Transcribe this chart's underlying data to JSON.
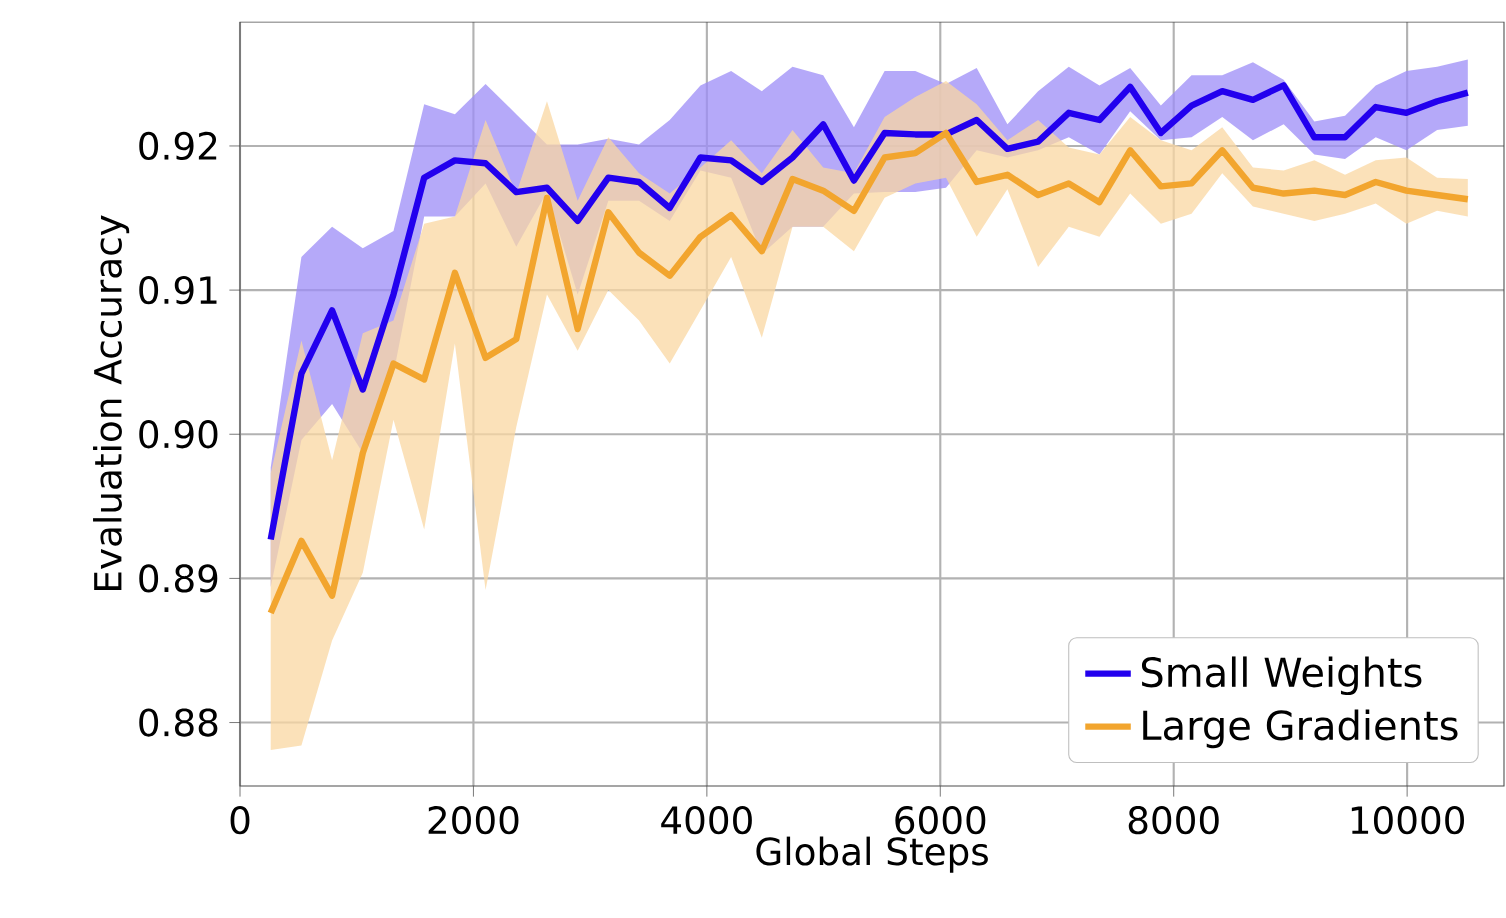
{
  "chart_data": {
    "type": "line",
    "xlabel": "Global Steps",
    "ylabel": "Evaluation Accuracy",
    "x": [
      263,
      526,
      789,
      1052,
      1315,
      1578,
      1841,
      2104,
      2367,
      2630,
      2893,
      3156,
      3419,
      3682,
      3945,
      4208,
      4471,
      4734,
      4997,
      5260,
      5523,
      5786,
      6049,
      6312,
      6575,
      6838,
      7101,
      7364,
      7627,
      7890,
      8153,
      8416,
      8679,
      8942,
      9205,
      9468,
      9731,
      9994,
      10257,
      10520
    ],
    "series": [
      {
        "name": "Small Weights",
        "color": "#2200ee",
        "values": [
          0.8927,
          0.9042,
          0.9086,
          0.9031,
          0.9097,
          0.9178,
          0.919,
          0.9188,
          0.9168,
          0.9171,
          0.9148,
          0.9178,
          0.9175,
          0.9157,
          0.9192,
          0.919,
          0.9175,
          0.9192,
          0.9215,
          0.9176,
          0.9209,
          0.9208,
          0.9208,
          0.9218,
          0.9198,
          0.9203,
          0.9223,
          0.9218,
          0.9241,
          0.9209,
          0.9228,
          0.9238,
          0.9232,
          0.9242,
          0.9206,
          0.9206,
          0.9227,
          0.9223,
          0.9231,
          0.9237
        ],
        "upper": [
          0.8977,
          0.9123,
          0.9144,
          0.9129,
          0.9141,
          0.9229,
          0.9222,
          0.9243,
          0.9222,
          0.9201,
          0.9201,
          0.9205,
          0.9201,
          0.9218,
          0.9242,
          0.9252,
          0.9238,
          0.9255,
          0.9249,
          0.9213,
          0.9252,
          0.9252,
          0.9243,
          0.9254,
          0.9215,
          0.9238,
          0.9255,
          0.9242,
          0.9254,
          0.9228,
          0.9249,
          0.9249,
          0.9258,
          0.9246,
          0.9217,
          0.9221,
          0.9242,
          0.9252,
          0.9255,
          0.926
        ],
        "lower": [
          0.8894,
          0.8996,
          0.9021,
          0.8987,
          0.9042,
          0.9151,
          0.9151,
          0.9174,
          0.913,
          0.9168,
          0.9097,
          0.9162,
          0.9162,
          0.9148,
          0.9183,
          0.9178,
          0.9125,
          0.9144,
          0.9144,
          0.9167,
          0.9168,
          0.9168,
          0.9171,
          0.9197,
          0.9192,
          0.9197,
          0.9206,
          0.9194,
          0.9224,
          0.9204,
          0.9206,
          0.922,
          0.9204,
          0.9215,
          0.9194,
          0.9191,
          0.9206,
          0.9197,
          0.9211,
          0.9214
        ]
      },
      {
        "name": "Large Gradients",
        "color": "#f2a52e",
        "values": [
          0.8876,
          0.8926,
          0.8888,
          0.8987,
          0.9049,
          0.9038,
          0.9112,
          0.9053,
          0.9066,
          0.9164,
          0.9073,
          0.9154,
          0.9126,
          0.911,
          0.9137,
          0.9152,
          0.9127,
          0.9177,
          0.9169,
          0.9155,
          0.9192,
          0.9195,
          0.9209,
          0.9175,
          0.918,
          0.9166,
          0.9174,
          0.9161,
          0.9197,
          0.9172,
          0.9174,
          0.9197,
          0.9171,
          0.9167,
          0.9169,
          0.9166,
          0.9175,
          0.9169,
          0.9166,
          0.9163
        ],
        "upper": [
          0.8973,
          0.9065,
          0.8982,
          0.907,
          0.9079,
          0.9146,
          0.9151,
          0.9218,
          0.9167,
          0.9231,
          0.9162,
          0.9206,
          0.9181,
          0.9167,
          0.9185,
          0.9204,
          0.9181,
          0.9211,
          0.9185,
          0.9181,
          0.922,
          0.9234,
          0.9245,
          0.9229,
          0.9204,
          0.9218,
          0.9199,
          0.9194,
          0.922,
          0.9204,
          0.9197,
          0.9213,
          0.9185,
          0.9183,
          0.919,
          0.918,
          0.919,
          0.9192,
          0.9178,
          0.9177
        ],
        "lower": [
          0.8781,
          0.8784,
          0.8857,
          0.8904,
          0.901,
          0.8934,
          0.9063,
          0.8892,
          0.9005,
          0.9097,
          0.9058,
          0.91,
          0.9079,
          0.9049,
          0.9086,
          0.9123,
          0.9067,
          0.9144,
          0.9144,
          0.9127,
          0.9164,
          0.9174,
          0.9178,
          0.9137,
          0.917,
          0.9116,
          0.9144,
          0.9137,
          0.9167,
          0.9146,
          0.9153,
          0.9181,
          0.9158,
          0.9153,
          0.9148,
          0.9153,
          0.916,
          0.9146,
          0.9155,
          0.9151
        ]
      }
    ],
    "xlim": [
      0,
      10830
    ],
    "ylim": [
      0.8756,
      0.9286
    ],
    "xticks": [
      0,
      2000,
      4000,
      6000,
      8000,
      10000
    ],
    "yticks": [
      0.88,
      0.89,
      {
        "value": 0.9,
        "label": "0.90"
      },
      0.91,
      0.92
    ],
    "grid": true,
    "legend": "bottom right",
    "line_style": "solid",
    "marker": "none"
  }
}
